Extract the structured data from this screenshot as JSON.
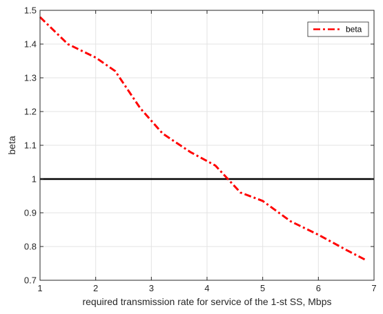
{
  "chart_data": {
    "type": "line",
    "title": "",
    "xlabel": "required transmission rate for service of the 1-st SS, Mbps",
    "ylabel": "beta",
    "xlim": [
      1,
      7
    ],
    "ylim": [
      0.7,
      1.5
    ],
    "xticks": [
      "1",
      "2",
      "3",
      "4",
      "5",
      "6",
      "7"
    ],
    "yticks": [
      "0.7",
      "0.8",
      "0.9",
      "1",
      "1.1",
      "1.2",
      "1.3",
      "1.4",
      "1.5"
    ],
    "grid": true,
    "legend_position": "top-right",
    "series": [
      {
        "name": "beta",
        "color": "#ff0000",
        "style": "dash-dot",
        "x": [
          1.0,
          1.5,
          2.0,
          2.35,
          2.8,
          3.2,
          3.7,
          4.15,
          4.6,
          5.0,
          5.5,
          6.0,
          6.5,
          6.85
        ],
        "y": [
          1.48,
          1.4,
          1.36,
          1.32,
          1.21,
          1.135,
          1.08,
          1.04,
          0.96,
          0.935,
          0.875,
          0.835,
          0.79,
          0.76
        ]
      },
      {
        "x": [
          1,
          7
        ],
        "y": [
          1.0,
          1.0
        ],
        "color": "#000000",
        "style": "solid"
      }
    ]
  }
}
